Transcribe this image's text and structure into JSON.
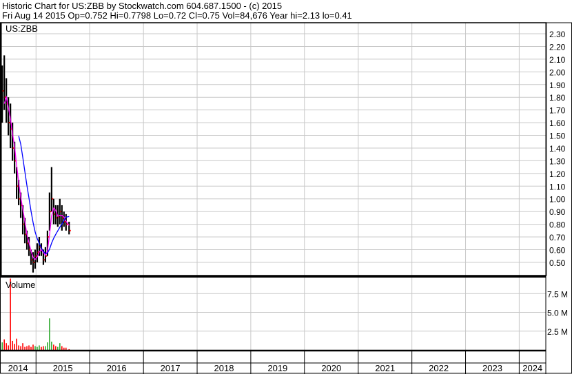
{
  "header": {
    "title": "Historic Chart for US:ZBB by Stockwatch.com 604.687.1500 - (c) 2015",
    "quote": "Fri Aug 14 2015  Op=0.752  Hi=0.7798  Lo=0.72  Cl=0.75  Vol=84,676  Year hi=2.13  lo=0.41"
  },
  "colors": {
    "price_bar": "#000000",
    "ma_short": "#ff00ff",
    "ma_long": "#0000ff",
    "vol_up": "#33aa33",
    "vol_down": "#ff0000",
    "grid": "#c8c8c8"
  },
  "chart_data": [
    {
      "type": "bar",
      "subtype": "ohlc-price",
      "label": "US:ZBB",
      "yticks": [
        "2.30",
        "2.20",
        "2.10",
        "2.00",
        "1.90",
        "1.80",
        "1.70",
        "1.60",
        "1.50",
        "1.40",
        "1.30",
        "1.20",
        "1.10",
        "1.00",
        "0.90",
        "0.80",
        "0.70",
        "0.60",
        "0.50"
      ],
      "ylim": [
        0.41,
        2.38
      ],
      "grid": true,
      "xticks": [
        "2014",
        "2015",
        "2016",
        "2017",
        "2018",
        "2019",
        "2020",
        "2021",
        "2022",
        "2023",
        "2024"
      ],
      "xlim": [
        "2014-05-01",
        "2024-06-30"
      ],
      "moving_averages": [
        "short",
        "long"
      ],
      "points": [
        {
          "date": "2014-05-02",
          "high": 1.75,
          "low": 1.35,
          "close": 1.6,
          "vol": 3.3
        },
        {
          "date": "2014-05-16",
          "high": 2.05,
          "low": 1.6,
          "close": 1.85,
          "vol": 1.0
        },
        {
          "date": "2014-05-30",
          "high": 2.13,
          "low": 1.7,
          "close": 1.8,
          "vol": 1.4
        },
        {
          "date": "2014-06-13",
          "high": 1.95,
          "low": 1.6,
          "close": 1.75,
          "vol": 0.9
        },
        {
          "date": "2014-06-27",
          "high": 1.8,
          "low": 1.5,
          "close": 1.6,
          "vol": 0.6
        },
        {
          "date": "2014-07-11",
          "high": 1.75,
          "low": 1.4,
          "close": 1.55,
          "vol": 9.5
        },
        {
          "date": "2014-07-25",
          "high": 1.6,
          "low": 1.3,
          "close": 1.4,
          "vol": 1.2
        },
        {
          "date": "2014-08-08",
          "high": 1.45,
          "low": 1.2,
          "close": 1.3,
          "vol": 0.8
        },
        {
          "date": "2014-08-22",
          "high": 1.25,
          "low": 1.0,
          "close": 1.1,
          "vol": 1.5
        },
        {
          "date": "2014-09-05",
          "high": 1.15,
          "low": 0.95,
          "close": 1.0,
          "vol": 0.6
        },
        {
          "date": "2014-09-19",
          "high": 1.05,
          "low": 0.85,
          "close": 0.95,
          "vol": 0.5
        },
        {
          "date": "2014-10-03",
          "high": 0.95,
          "low": 0.72,
          "close": 0.8,
          "vol": 0.9
        },
        {
          "date": "2014-10-17",
          "high": 0.85,
          "low": 0.65,
          "close": 0.72,
          "vol": 0.4
        },
        {
          "date": "2014-10-31",
          "high": 0.75,
          "low": 0.6,
          "close": 0.65,
          "vol": 0.5
        },
        {
          "date": "2014-11-14",
          "high": 0.7,
          "low": 0.55,
          "close": 0.6,
          "vol": 0.6
        },
        {
          "date": "2014-11-28",
          "high": 0.6,
          "low": 0.48,
          "close": 0.52,
          "vol": 0.4
        },
        {
          "date": "2014-12-12",
          "high": 0.58,
          "low": 0.42,
          "close": 0.5,
          "vol": 0.7
        },
        {
          "date": "2014-12-26",
          "high": 0.6,
          "low": 0.45,
          "close": 0.55,
          "vol": 0.5
        },
        {
          "date": "2015-01-09",
          "high": 0.65,
          "low": 0.5,
          "close": 0.58,
          "vol": 0.4
        },
        {
          "date": "2015-01-23",
          "high": 0.7,
          "low": 0.55,
          "close": 0.62,
          "vol": 0.6
        },
        {
          "date": "2015-02-06",
          "high": 0.65,
          "low": 0.55,
          "close": 0.6,
          "vol": 0.4
        },
        {
          "date": "2015-02-20",
          "high": 0.6,
          "low": 0.48,
          "close": 0.52,
          "vol": 0.5
        },
        {
          "date": "2015-03-06",
          "high": 0.62,
          "low": 0.5,
          "close": 0.55,
          "vol": 0.5
        },
        {
          "date": "2015-03-20",
          "high": 0.75,
          "low": 0.55,
          "close": 0.7,
          "vol": 1.0
        },
        {
          "date": "2015-04-03",
          "high": 1.05,
          "low": 0.75,
          "close": 0.9,
          "vol": 4.2
        },
        {
          "date": "2015-04-17",
          "high": 1.25,
          "low": 0.9,
          "close": 1.0,
          "vol": 1.1
        },
        {
          "date": "2015-05-01",
          "high": 1.0,
          "low": 0.8,
          "close": 0.88,
          "vol": 0.7
        },
        {
          "date": "2015-05-15",
          "high": 0.95,
          "low": 0.8,
          "close": 0.85,
          "vol": 0.5
        },
        {
          "date": "2015-05-29",
          "high": 0.95,
          "low": 0.78,
          "close": 0.86,
          "vol": 0.4
        },
        {
          "date": "2015-06-12",
          "high": 1.0,
          "low": 0.8,
          "close": 0.9,
          "vol": 0.9
        },
        {
          "date": "2015-06-26",
          "high": 0.95,
          "low": 0.75,
          "close": 0.85,
          "vol": 0.5
        },
        {
          "date": "2015-07-10",
          "high": 0.9,
          "low": 0.78,
          "close": 0.82,
          "vol": 0.3
        },
        {
          "date": "2015-07-24",
          "high": 0.88,
          "low": 0.75,
          "close": 0.8,
          "vol": 0.3
        },
        {
          "date": "2015-08-14",
          "high": 0.82,
          "low": 0.72,
          "close": 0.75,
          "vol": 0.1
        }
      ]
    },
    {
      "type": "bar",
      "subtype": "volume",
      "label": "Volume",
      "unit": "M",
      "yticks": [
        "7.5 M",
        "5.0 M",
        "2.5 M"
      ],
      "ylim": [
        0,
        10
      ],
      "grid": true
    }
  ]
}
